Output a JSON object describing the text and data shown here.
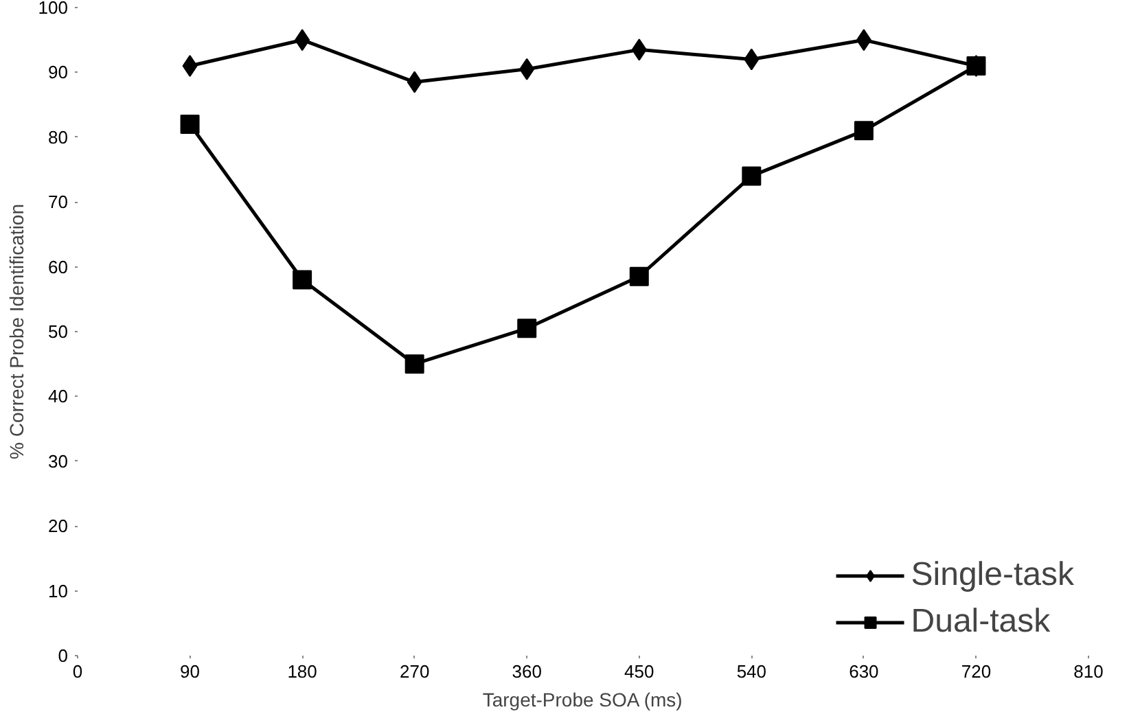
{
  "chart_data": {
    "type": "line",
    "xlabel": "Target-Probe SOA (ms)",
    "ylabel": "% Correct Probe Identification",
    "x": [
      90,
      180,
      270,
      360,
      450,
      540,
      630,
      720
    ],
    "series": [
      {
        "name": "Single-task",
        "color": "#000000",
        "marker": "diamond",
        "values": [
          91,
          95,
          88.5,
          90.5,
          93.5,
          92,
          95,
          91
        ]
      },
      {
        "name": "Dual-task",
        "color": "#000000",
        "marker": "square",
        "values": [
          82,
          58,
          45,
          50.5,
          58.5,
          74,
          81,
          91
        ]
      }
    ],
    "xlim": [
      0,
      810
    ],
    "xticks": [
      0,
      90,
      180,
      270,
      360,
      450,
      540,
      630,
      720,
      810
    ],
    "ylim": [
      0,
      100
    ],
    "yticks": [
      0,
      10,
      20,
      30,
      40,
      50,
      60,
      70,
      80,
      90,
      100
    ],
    "grid": false,
    "legend": "bottom right",
    "line_style": "solid"
  }
}
